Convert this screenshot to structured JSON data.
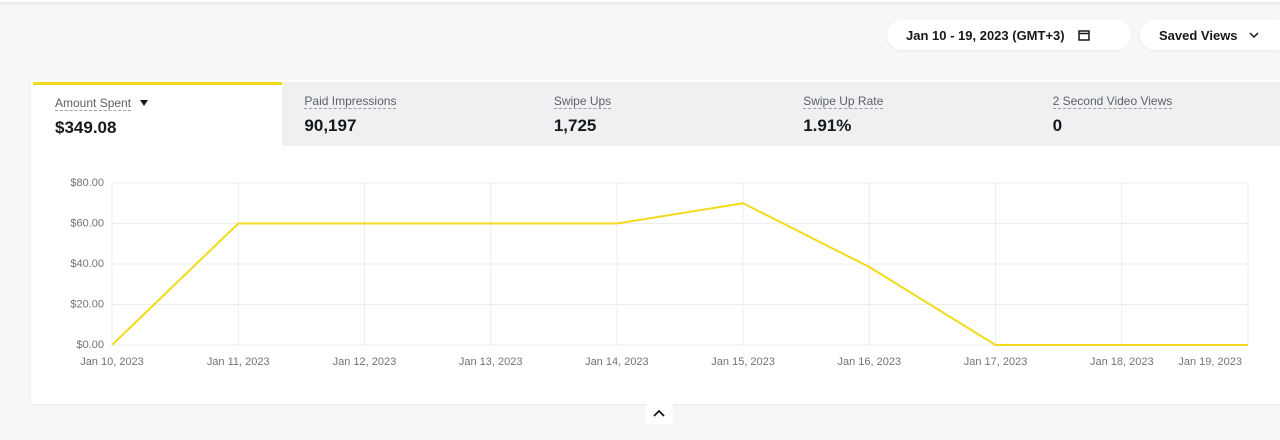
{
  "header": {
    "date_range": "Jan 10 - 19, 2023 (GMT+3)",
    "saved_views": "Saved Views"
  },
  "tabs": [
    {
      "label": "Amount Spent",
      "value": "$349.08"
    },
    {
      "label": "Paid Impressions",
      "value": "90,197"
    },
    {
      "label": "Swipe Ups",
      "value": "1,725"
    },
    {
      "label": "Swipe Up Rate",
      "value": "1.91%"
    },
    {
      "label": "2 Second Video Views",
      "value": "0"
    }
  ],
  "chart_data": {
    "type": "line",
    "color": "#f2da1c",
    "categories": [
      "Jan 10, 2023",
      "Jan 11, 2023",
      "Jan 12, 2023",
      "Jan 13, 2023",
      "Jan 14, 2023",
      "Jan 15, 2023",
      "Jan 16, 2023",
      "Jan 17, 2023",
      "Jan 18, 2023",
      "Jan 19, 2023"
    ],
    "values": [
      0,
      60,
      60,
      60,
      60,
      70,
      38.5,
      0,
      0,
      0
    ],
    "ylim": [
      0,
      80
    ],
    "yticks": [
      {
        "value": 0,
        "label": "$0.00"
      },
      {
        "value": 20,
        "label": "$20.00"
      },
      {
        "value": 40,
        "label": "$40.00"
      },
      {
        "value": 60,
        "label": "$60.00"
      },
      {
        "value": 80,
        "label": "$80.00"
      }
    ],
    "grid": true
  }
}
